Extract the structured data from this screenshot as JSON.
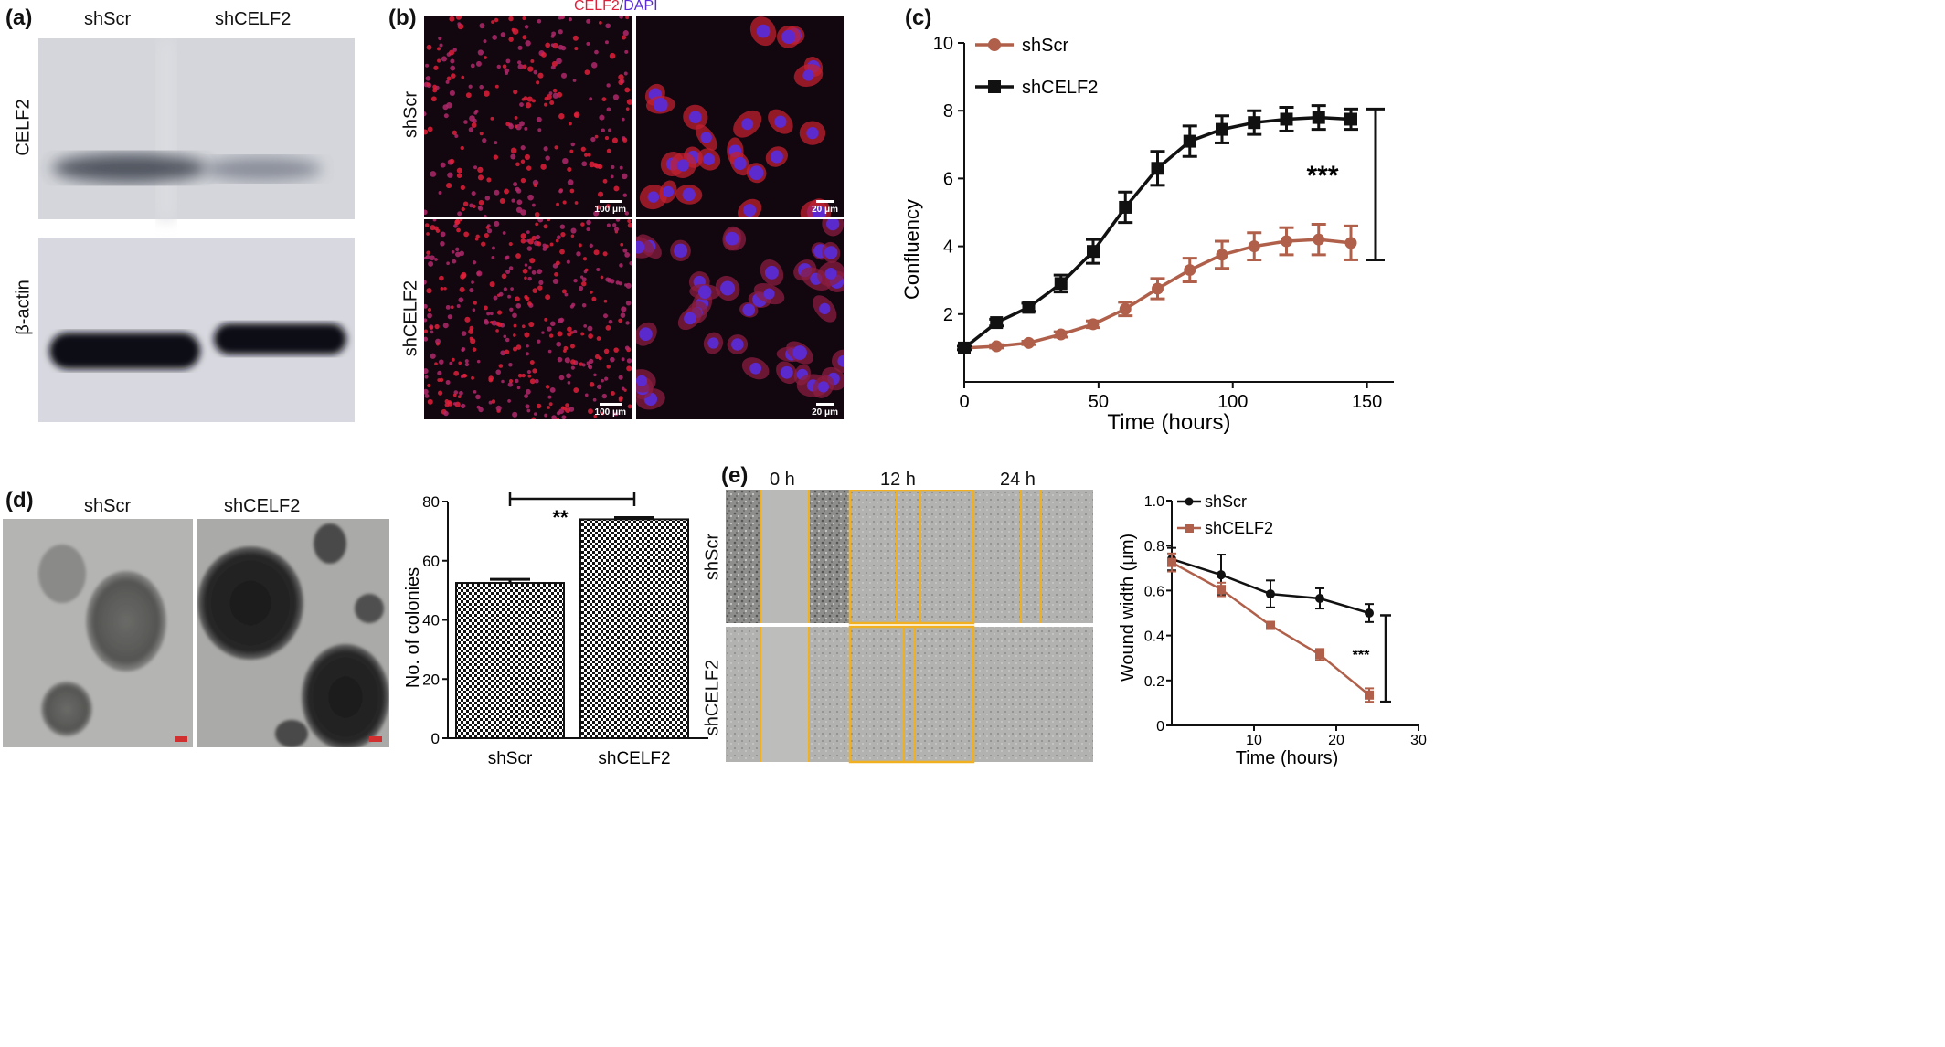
{
  "panel_a": {
    "label": "(a)",
    "lanes": [
      "shScr",
      "shCELF2"
    ],
    "blots": [
      "CELF2",
      "β-actin"
    ]
  },
  "panel_b": {
    "label": "(b)",
    "title_celf2": "CELF2",
    "title_sep": "/",
    "title_dapi": "DAPI",
    "rows": [
      "shScr",
      "shCELF2"
    ],
    "scale_low": "100 μm",
    "scale_high": "20 μm",
    "colors": {
      "celf2": "#e0203a",
      "dapi": "#5a2bd6"
    }
  },
  "panel_c": {
    "label": "(c)",
    "significance": "***",
    "chart_data": {
      "type": "line",
      "xlabel": "Time (hours)",
      "ylabel": "Confluency",
      "xlim": [
        0,
        160
      ],
      "ylim": [
        0,
        10
      ],
      "xticks": [
        0,
        50,
        100,
        150
      ],
      "yticks": [
        2,
        4,
        6,
        8,
        10
      ],
      "x": [
        0,
        12,
        24,
        36,
        48,
        60,
        72,
        84,
        96,
        108,
        120,
        132,
        144
      ],
      "series": [
        {
          "name": "shScr",
          "color": "#b0604a",
          "values": [
            1.0,
            1.05,
            1.15,
            1.4,
            1.7,
            2.15,
            2.75,
            3.3,
            3.75,
            4.0,
            4.15,
            4.2,
            4.1
          ],
          "errors": [
            0.05,
            0.05,
            0.05,
            0.08,
            0.1,
            0.2,
            0.3,
            0.35,
            0.4,
            0.4,
            0.4,
            0.45,
            0.5
          ]
        },
        {
          "name": "shCELF2",
          "color": "#111111",
          "values": [
            1.0,
            1.75,
            2.2,
            2.9,
            3.85,
            5.15,
            6.3,
            7.1,
            7.45,
            7.65,
            7.75,
            7.8,
            7.75
          ],
          "errors": [
            0.05,
            0.1,
            0.12,
            0.25,
            0.35,
            0.45,
            0.5,
            0.45,
            0.4,
            0.35,
            0.35,
            0.35,
            0.3
          ]
        }
      ]
    }
  },
  "panel_d": {
    "label": "(d)",
    "images": [
      "shScr",
      "shCELF2"
    ],
    "significance": "**",
    "chart_data": {
      "type": "bar",
      "categories": [
        "shScr",
        "shCELF2"
      ],
      "values": [
        52.5,
        74
      ],
      "errors": [
        1.2,
        0.6
      ],
      "ylabel": "No. of colonies",
      "ylim": [
        0,
        80
      ],
      "yticks": [
        0,
        20,
        40,
        60,
        80
      ]
    }
  },
  "panel_e": {
    "label": "(e)",
    "times": [
      "0 h",
      "12 h",
      "24 h"
    ],
    "rows": [
      "shScr",
      "shCELF2"
    ],
    "significance": "***",
    "chart_data": {
      "type": "line",
      "xlabel": "Time (hours)",
      "ylabel": "Wound width (μm)",
      "xlim": [
        0,
        30
      ],
      "ylim": [
        0,
        1.0
      ],
      "xticks": [
        10,
        20,
        30
      ],
      "yticks": [
        0,
        0.2,
        0.4,
        0.6,
        0.8,
        1.0
      ],
      "ytick_labels": [
        "0",
        "0.2",
        "0.4",
        "0.6",
        "0.8",
        "1.0"
      ],
      "x": [
        0,
        6,
        12,
        18,
        24
      ],
      "series": [
        {
          "name": "shScr",
          "color": "#111111",
          "values": [
            0.74,
            0.67,
            0.585,
            0.565,
            0.5
          ],
          "errors": [
            0.05,
            0.09,
            0.06,
            0.045,
            0.04
          ]
        },
        {
          "name": "shCELF2",
          "color": "#b0604a",
          "values": [
            0.725,
            0.605,
            0.445,
            0.315,
            0.135
          ],
          "errors": [
            0.04,
            0.03,
            0.01,
            0.025,
            0.03
          ]
        }
      ]
    }
  }
}
